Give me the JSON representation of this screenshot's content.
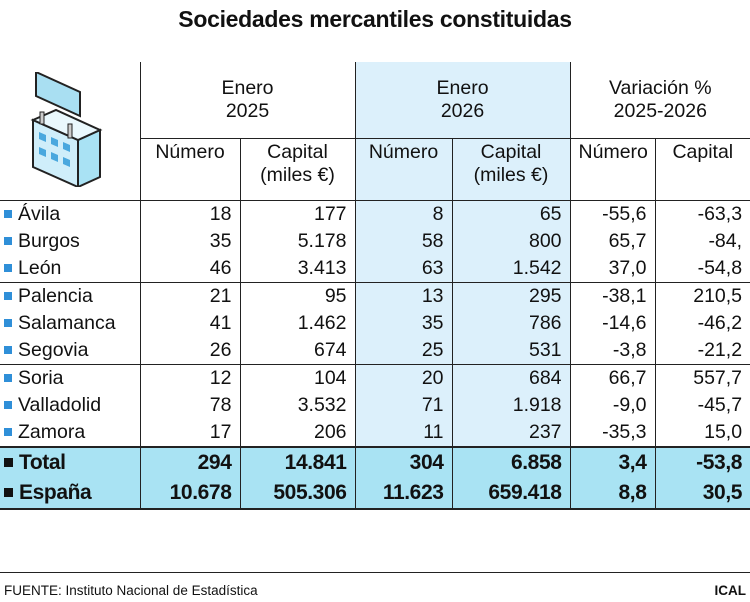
{
  "title": "Sociedades mercantiles constituidas",
  "source": "FUENTE: Instituto Nacional de Estadística",
  "brand": "ICAL",
  "colors": {
    "highlight_column": "#dcf0fb",
    "total_rows": "#a9e3f3",
    "bullet": "#2f8fd8"
  },
  "icon": "office-building-with-sign-icon",
  "chart_data": {
    "type": "table",
    "groups": [
      {
        "line1": "Enero",
        "line2": "2025"
      },
      {
        "line1": "Enero",
        "line2": "2026"
      },
      {
        "line1": "Variación %",
        "line2": "2025-2026"
      }
    ],
    "subheaders": [
      {
        "l1": "Número",
        "l2": ""
      },
      {
        "l1": "Capital",
        "l2": "(miles €)"
      },
      {
        "l1": "Número",
        "l2": ""
      },
      {
        "l1": "Capital",
        "l2": "(miles €)"
      },
      {
        "l1": "Número",
        "l2": ""
      },
      {
        "l1": "Capital",
        "l2": ""
      }
    ],
    "rows": [
      {
        "name": "Ávila",
        "values": [
          "18",
          "177",
          "8",
          "65",
          "-55,6",
          "-63,3"
        ]
      },
      {
        "name": "Burgos",
        "values": [
          "35",
          "5.178",
          "58",
          "800",
          "65,7",
          "-84,"
        ]
      },
      {
        "name": "León",
        "values": [
          "46",
          "3.413",
          "63",
          "1.542",
          "37,0",
          "-54,8"
        ]
      },
      {
        "name": "Palencia",
        "values": [
          "21",
          "95",
          "13",
          "295",
          "-38,1",
          "210,5"
        ]
      },
      {
        "name": "Salamanca",
        "values": [
          "41",
          "1.462",
          "35",
          "786",
          "-14,6",
          "-46,2"
        ]
      },
      {
        "name": "Segovia",
        "values": [
          "26",
          "674",
          "25",
          "531",
          "-3,8",
          "-21,2"
        ]
      },
      {
        "name": "Soria",
        "values": [
          "12",
          "104",
          "20",
          "684",
          "66,7",
          "557,7"
        ]
      },
      {
        "name": "Valladolid",
        "values": [
          "78",
          "3.532",
          "71",
          "1.918",
          "-9,0",
          "-45,7"
        ]
      },
      {
        "name": "Zamora",
        "values": [
          "17",
          "206",
          "11",
          "237",
          "-35,3",
          "15,0"
        ]
      }
    ],
    "totals": [
      {
        "name": "Total",
        "values": [
          "294",
          "14.841",
          "304",
          "6.858",
          "3,4",
          "-53,8"
        ]
      },
      {
        "name": "España",
        "values": [
          "10.678",
          "505.306",
          "11.623",
          "659.418",
          "8,8",
          "30,5"
        ]
      }
    ]
  }
}
